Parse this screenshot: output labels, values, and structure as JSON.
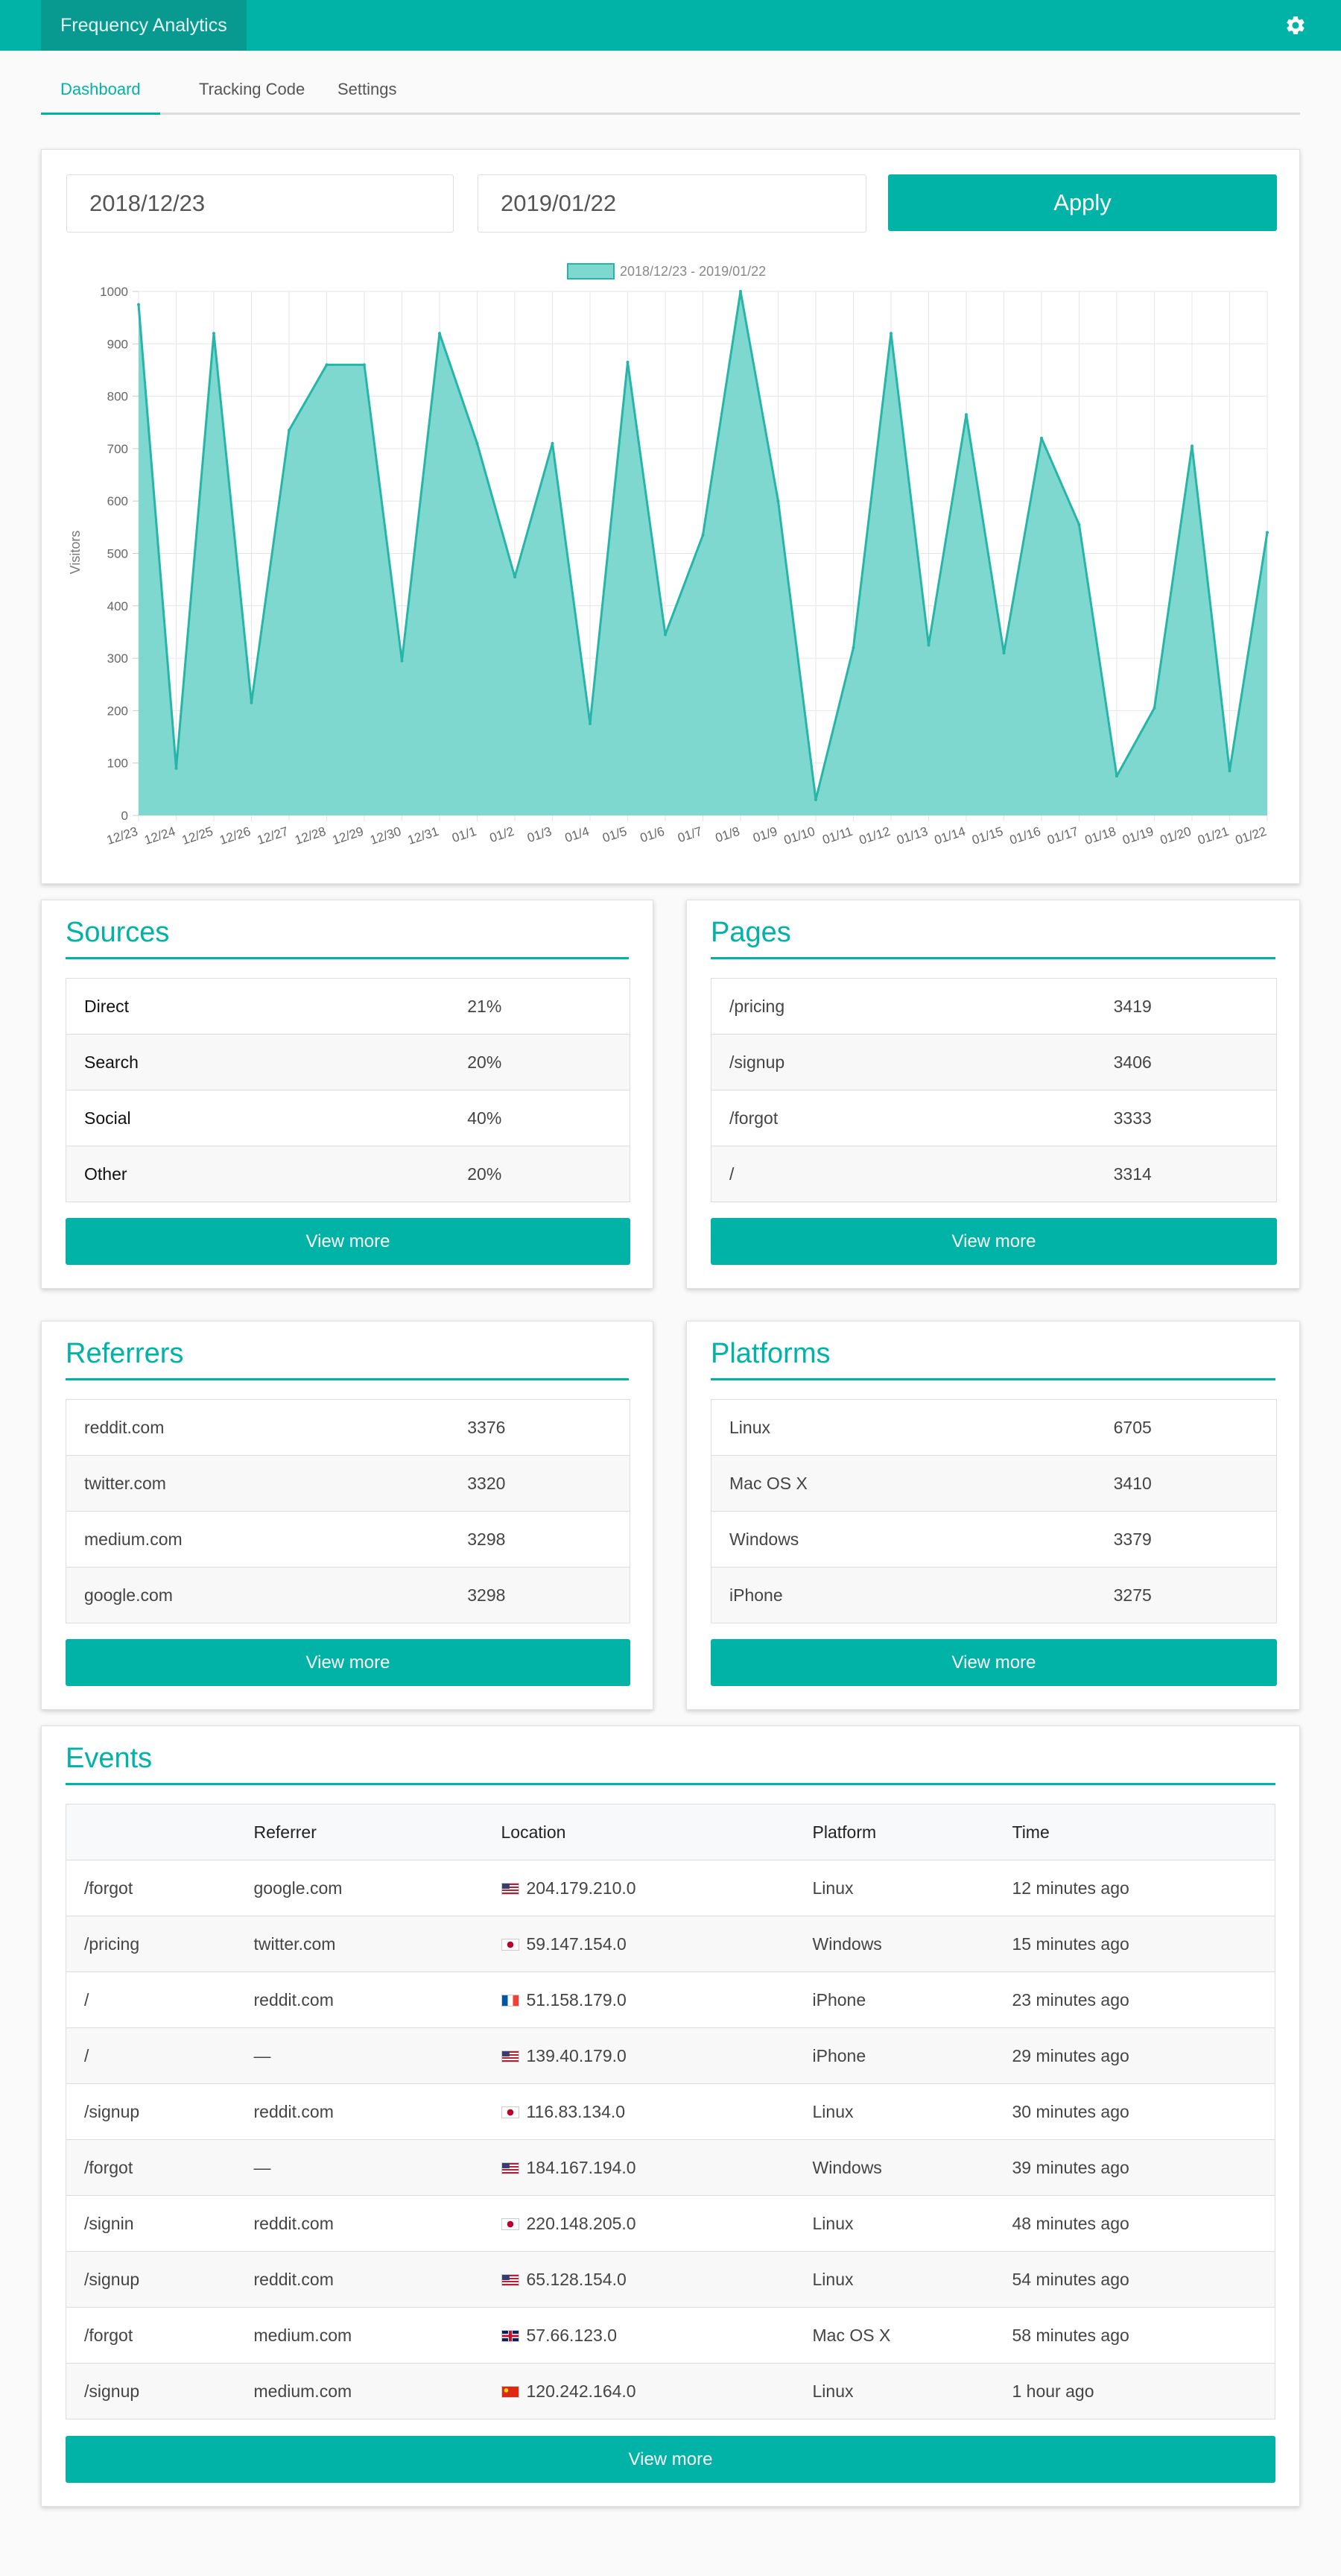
{
  "app": {
    "title": "Frequency Analytics",
    "settings_icon": "gear-icon"
  },
  "tabs": [
    {
      "label": "Dashboard",
      "active": true
    },
    {
      "label": "Tracking Code",
      "active": false
    },
    {
      "label": "Settings",
      "active": false
    }
  ],
  "filters": {
    "start_date": "2018/12/23",
    "end_date": "2019/01/22",
    "apply_label": "Apply"
  },
  "chart_data": {
    "type": "area",
    "title": "",
    "xlabel": "",
    "ylabel": "Visitors",
    "ylim": [
      0,
      1000
    ],
    "yticks": [
      0,
      100,
      200,
      300,
      400,
      500,
      600,
      700,
      800,
      900,
      1000
    ],
    "legend_position": "top-center",
    "grid": true,
    "color": "#26b5a8",
    "fill": "#7fd8d0",
    "categories": [
      "12/23",
      "12/24",
      "12/25",
      "12/26",
      "12/27",
      "12/28",
      "12/29",
      "12/30",
      "12/31",
      "01/1",
      "01/2",
      "01/3",
      "01/4",
      "01/5",
      "01/6",
      "01/7",
      "01/8",
      "01/9",
      "01/10",
      "01/11",
      "01/12",
      "01/13",
      "01/14",
      "01/15",
      "01/16",
      "01/17",
      "01/18",
      "01/19",
      "01/20",
      "01/21",
      "01/22"
    ],
    "series": [
      {
        "name": "2018/12/23 - 2019/01/22",
        "values": [
          975,
          90,
          920,
          215,
          735,
          860,
          860,
          295,
          920,
          710,
          455,
          710,
          175,
          865,
          345,
          535,
          1000,
          600,
          30,
          320,
          920,
          325,
          765,
          310,
          720,
          555,
          75,
          205,
          705,
          85,
          540
        ]
      }
    ]
  },
  "sources": {
    "title": "Sources",
    "rows": [
      {
        "label": "Direct",
        "value": "21%"
      },
      {
        "label": "Search",
        "value": "20%"
      },
      {
        "label": "Social",
        "value": "40%"
      },
      {
        "label": "Other",
        "value": "20%"
      }
    ],
    "more_label": "View more"
  },
  "pages": {
    "title": "Pages",
    "rows": [
      {
        "label": "/pricing",
        "value": "3419"
      },
      {
        "label": "/signup",
        "value": "3406"
      },
      {
        "label": "/forgot",
        "value": "3333"
      },
      {
        "label": "/",
        "value": "3314"
      }
    ],
    "more_label": "View more"
  },
  "referrers": {
    "title": "Referrers",
    "rows": [
      {
        "label": "reddit.com",
        "value": "3376"
      },
      {
        "label": "twitter.com",
        "value": "3320"
      },
      {
        "label": "medium.com",
        "value": "3298"
      },
      {
        "label": "google.com",
        "value": "3298"
      }
    ],
    "more_label": "View more"
  },
  "platforms": {
    "title": "Platforms",
    "rows": [
      {
        "label": "Linux",
        "value": "6705"
      },
      {
        "label": "Mac OS X",
        "value": "3410"
      },
      {
        "label": "Windows",
        "value": "3379"
      },
      {
        "label": "iPhone",
        "value": "3275"
      }
    ],
    "more_label": "View more"
  },
  "events": {
    "title": "Events",
    "columns": [
      "",
      "Referrer",
      "Location",
      "Platform",
      "Time"
    ],
    "rows": [
      {
        "page": "/forgot",
        "referrer": "google.com",
        "flag": "us",
        "ip": "204.179.210.0",
        "platform": "Linux",
        "time": "12 minutes ago"
      },
      {
        "page": "/pricing",
        "referrer": "twitter.com",
        "flag": "jp",
        "ip": "59.147.154.0",
        "platform": "Windows",
        "time": "15 minutes ago"
      },
      {
        "page": "/",
        "referrer": "reddit.com",
        "flag": "fr",
        "ip": "51.158.179.0",
        "platform": "iPhone",
        "time": "23 minutes ago"
      },
      {
        "page": "/",
        "referrer": "—",
        "flag": "us",
        "ip": "139.40.179.0",
        "platform": "iPhone",
        "time": "29 minutes ago"
      },
      {
        "page": "/signup",
        "referrer": "reddit.com",
        "flag": "jp",
        "ip": "116.83.134.0",
        "platform": "Linux",
        "time": "30 minutes ago"
      },
      {
        "page": "/forgot",
        "referrer": "—",
        "flag": "us",
        "ip": "184.167.194.0",
        "platform": "Windows",
        "time": "39 minutes ago"
      },
      {
        "page": "/signin",
        "referrer": "reddit.com",
        "flag": "jp",
        "ip": "220.148.205.0",
        "platform": "Linux",
        "time": "48 minutes ago"
      },
      {
        "page": "/signup",
        "referrer": "reddit.com",
        "flag": "us",
        "ip": "65.128.154.0",
        "platform": "Linux",
        "time": "54 minutes ago"
      },
      {
        "page": "/forgot",
        "referrer": "medium.com",
        "flag": "gb",
        "ip": "57.66.123.0",
        "platform": "Mac OS X",
        "time": "58 minutes ago"
      },
      {
        "page": "/signup",
        "referrer": "medium.com",
        "flag": "cn",
        "ip": "120.242.164.0",
        "platform": "Linux",
        "time": "1 hour ago"
      }
    ],
    "more_label": "View more"
  }
}
